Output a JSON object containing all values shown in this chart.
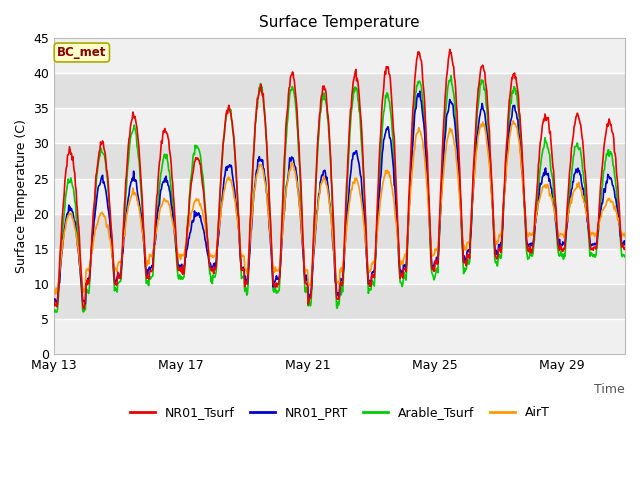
{
  "title": "Surface Temperature",
  "xlabel": "Time",
  "ylabel": "Surface Temperature (C)",
  "ylim": [
    0,
    45
  ],
  "annotation_text": "BC_met",
  "annotation_bg": "#ffffcc",
  "annotation_border": "#aaaa00",
  "annotation_text_color": "#880000",
  "series": {
    "NR01_Tsurf": {
      "color": "#ee0000",
      "lw": 1.2
    },
    "NR01_PRT": {
      "color": "#0000cc",
      "lw": 1.2
    },
    "Arable_Tsurf": {
      "color": "#00cc00",
      "lw": 1.2
    },
    "AirT": {
      "color": "#ff9900",
      "lw": 1.2
    }
  },
  "xtick_labels": [
    "May 13",
    "May 17",
    "May 21",
    "May 25",
    "May 29"
  ],
  "xtick_positions": [
    0,
    4,
    8,
    12,
    16
  ],
  "ytick_vals": [
    0,
    5,
    10,
    15,
    20,
    25,
    30,
    35,
    40,
    45
  ],
  "band_colors": [
    "#f0f0f0",
    "#e0e0e0"
  ],
  "grid_line_color": "#ffffff",
  "fig_bg": "#ffffff"
}
